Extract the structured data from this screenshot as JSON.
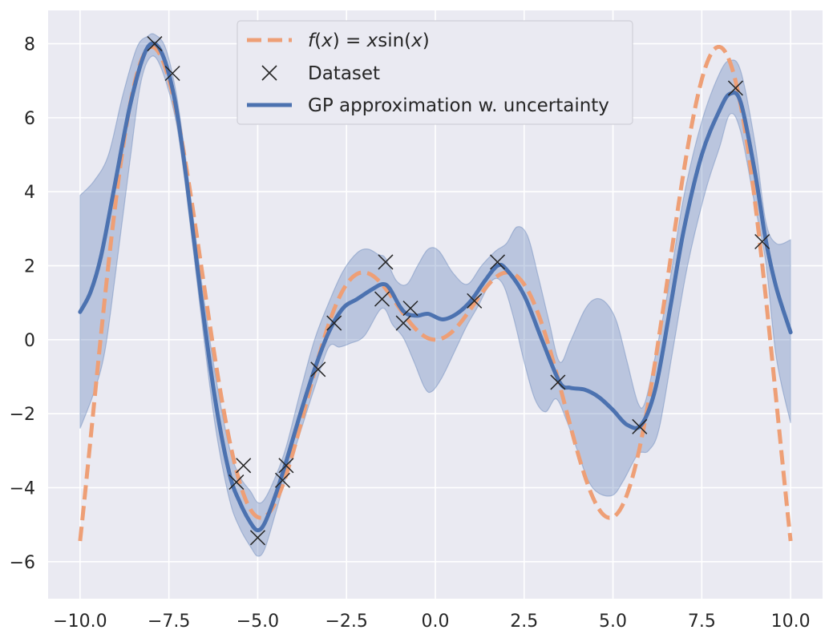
{
  "chart_data": {
    "type": "line",
    "xlim": [
      -10.9,
      10.9
    ],
    "ylim": [
      -7.0,
      8.9
    ],
    "grid": true,
    "legend_position": "top-center",
    "xticks": [
      -10.0,
      -7.5,
      -5.0,
      -2.5,
      0.0,
      2.5,
      5.0,
      7.5,
      10.0
    ],
    "xtick_labels": [
      "-10.0",
      "-7.5",
      "-5.0",
      "-2.5",
      "0.0",
      "2.5",
      "5.0",
      "7.5",
      "10.0"
    ],
    "yticks": [
      -6,
      -4,
      -2,
      0,
      2,
      4,
      6,
      8
    ],
    "ytick_labels": [
      "-6",
      "-4",
      "-2",
      "0",
      "2",
      "4",
      "6",
      "8"
    ],
    "legend": [
      {
        "kind": "true-function",
        "label_prefix": "f(x) = x",
        "label_fn": "sin",
        "label_arg": "(x)"
      },
      {
        "kind": "dataset",
        "label": "Dataset"
      },
      {
        "kind": "gp",
        "label": "GP approximation w. uncertainty"
      }
    ],
    "colors": {
      "background": "#eaeaf2",
      "grid": "#ffffff",
      "true_function": "#ee9f76",
      "gp_mean": "#4c72b0",
      "gp_band": "#4c72b0",
      "marker": "#262626"
    },
    "true_function": {
      "name": "f(x) = x sin(x)",
      "x_range": [
        -10,
        10
      ]
    },
    "dataset": [
      [
        -7.9,
        8.0
      ],
      [
        -7.4,
        7.2
      ],
      [
        -5.6,
        -3.85
      ],
      [
        -5.4,
        -3.4
      ],
      [
        -5.0,
        -5.35
      ],
      [
        -4.3,
        -3.8
      ],
      [
        -4.2,
        -3.4
      ],
      [
        -3.3,
        -0.8
      ],
      [
        -2.85,
        0.45
      ],
      [
        -1.5,
        1.1
      ],
      [
        -1.4,
        2.1
      ],
      [
        -0.9,
        0.45
      ],
      [
        -0.7,
        0.85
      ],
      [
        1.1,
        1.05
      ],
      [
        1.75,
        2.1
      ],
      [
        3.45,
        -1.15
      ],
      [
        5.75,
        -2.35
      ],
      [
        8.45,
        6.8
      ],
      [
        9.2,
        2.65
      ]
    ],
    "gp_mean": [
      [
        -10.0,
        0.75
      ],
      [
        -9.7,
        1.3
      ],
      [
        -9.4,
        2.3
      ],
      [
        -9.0,
        4.3
      ],
      [
        -8.6,
        6.3
      ],
      [
        -8.2,
        7.7
      ],
      [
        -7.9,
        8.0
      ],
      [
        -7.6,
        7.5
      ],
      [
        -7.3,
        6.3
      ],
      [
        -7.0,
        4.3
      ],
      [
        -6.6,
        1.2
      ],
      [
        -6.2,
        -1.6
      ],
      [
        -5.8,
        -3.6
      ],
      [
        -5.5,
        -4.4
      ],
      [
        -5.2,
        -4.95
      ],
      [
        -5.0,
        -5.15
      ],
      [
        -4.8,
        -4.95
      ],
      [
        -4.5,
        -4.2
      ],
      [
        -4.2,
        -3.3
      ],
      [
        -3.8,
        -2.0
      ],
      [
        -3.4,
        -0.8
      ],
      [
        -3.0,
        0.2
      ],
      [
        -2.6,
        0.85
      ],
      [
        -2.2,
        1.1
      ],
      [
        -1.8,
        1.35
      ],
      [
        -1.5,
        1.5
      ],
      [
        -1.3,
        1.4
      ],
      [
        -1.0,
        0.9
      ],
      [
        -0.8,
        0.7
      ],
      [
        -0.5,
        0.65
      ],
      [
        -0.2,
        0.7
      ],
      [
        0.2,
        0.55
      ],
      [
        0.6,
        0.7
      ],
      [
        1.0,
        1.05
      ],
      [
        1.4,
        1.6
      ],
      [
        1.75,
        2.0
      ],
      [
        2.0,
        1.9
      ],
      [
        2.5,
        1.2
      ],
      [
        3.0,
        0.0
      ],
      [
        3.5,
        -1.15
      ],
      [
        3.8,
        -1.3
      ],
      [
        4.2,
        -1.35
      ],
      [
        4.6,
        -1.55
      ],
      [
        5.0,
        -1.9
      ],
      [
        5.4,
        -2.3
      ],
      [
        5.8,
        -2.3
      ],
      [
        6.2,
        -1.3
      ],
      [
        6.6,
        0.8
      ],
      [
        7.0,
        3.0
      ],
      [
        7.5,
        5.0
      ],
      [
        8.0,
        6.2
      ],
      [
        8.3,
        6.65
      ],
      [
        8.6,
        6.4
      ],
      [
        9.0,
        4.5
      ],
      [
        9.3,
        2.7
      ],
      [
        9.6,
        1.4
      ],
      [
        10.0,
        0.2
      ]
    ],
    "gp_upper": [
      [
        -10.0,
        3.9
      ],
      [
        -9.6,
        4.3
      ],
      [
        -9.2,
        5.0
      ],
      [
        -8.8,
        6.6
      ],
      [
        -8.4,
        7.9
      ],
      [
        -8.1,
        8.2
      ],
      [
        -7.9,
        8.25
      ],
      [
        -7.6,
        7.9
      ],
      [
        -7.3,
        6.7
      ],
      [
        -7.0,
        4.7
      ],
      [
        -6.6,
        1.7
      ],
      [
        -6.2,
        -0.9
      ],
      [
        -5.8,
        -2.9
      ],
      [
        -5.5,
        -3.7
      ],
      [
        -5.2,
        -4.1
      ],
      [
        -5.0,
        -4.4
      ],
      [
        -4.8,
        -4.3
      ],
      [
        -4.5,
        -3.7
      ],
      [
        -4.2,
        -2.9
      ],
      [
        -3.8,
        -1.4
      ],
      [
        -3.4,
        0.0
      ],
      [
        -3.0,
        1.0
      ],
      [
        -2.6,
        1.85
      ],
      [
        -2.2,
        2.35
      ],
      [
        -1.9,
        2.45
      ],
      [
        -1.6,
        2.3
      ],
      [
        -1.4,
        2.2
      ],
      [
        -1.1,
        1.6
      ],
      [
        -0.8,
        1.5
      ],
      [
        -0.5,
        2.0
      ],
      [
        -0.2,
        2.45
      ],
      [
        0.1,
        2.4
      ],
      [
        0.5,
        1.8
      ],
      [
        0.9,
        1.5
      ],
      [
        1.3,
        2.0
      ],
      [
        1.7,
        2.4
      ],
      [
        2.0,
        2.6
      ],
      [
        2.3,
        3.05
      ],
      [
        2.6,
        2.8
      ],
      [
        2.9,
        1.7
      ],
      [
        3.2,
        0.5
      ],
      [
        3.5,
        -0.6
      ],
      [
        3.8,
        -0.05
      ],
      [
        4.2,
        0.8
      ],
      [
        4.5,
        1.1
      ],
      [
        4.8,
        1.0
      ],
      [
        5.1,
        0.5
      ],
      [
        5.4,
        -0.6
      ],
      [
        5.7,
        -1.7
      ],
      [
        5.9,
        -1.7
      ],
      [
        6.2,
        -0.4
      ],
      [
        6.6,
        1.6
      ],
      [
        7.0,
        3.9
      ],
      [
        7.5,
        5.9
      ],
      [
        8.0,
        7.2
      ],
      [
        8.3,
        7.55
      ],
      [
        8.6,
        7.25
      ],
      [
        9.0,
        5.3
      ],
      [
        9.3,
        3.2
      ],
      [
        9.6,
        2.6
      ],
      [
        10.0,
        2.7
      ]
    ],
    "gp_lower": [
      [
        -10.0,
        -2.4
      ],
      [
        -9.6,
        -1.4
      ],
      [
        -9.3,
        -0.3
      ],
      [
        -9.0,
        1.8
      ],
      [
        -8.6,
        4.8
      ],
      [
        -8.3,
        6.9
      ],
      [
        -8.0,
        7.65
      ],
      [
        -7.7,
        7.3
      ],
      [
        -7.3,
        5.9
      ],
      [
        -7.0,
        3.9
      ],
      [
        -6.6,
        0.7
      ],
      [
        -6.2,
        -2.3
      ],
      [
        -5.8,
        -4.3
      ],
      [
        -5.5,
        -5.1
      ],
      [
        -5.2,
        -5.6
      ],
      [
        -5.0,
        -5.85
      ],
      [
        -4.8,
        -5.65
      ],
      [
        -4.5,
        -4.7
      ],
      [
        -4.2,
        -3.7
      ],
      [
        -3.8,
        -2.5
      ],
      [
        -3.4,
        -1.3
      ],
      [
        -3.0,
        -0.2
      ],
      [
        -2.7,
        -0.2
      ],
      [
        -2.4,
        -0.1
      ],
      [
        -2.0,
        0.1
      ],
      [
        -1.5,
        0.85
      ],
      [
        -1.2,
        0.4
      ],
      [
        -0.9,
        0.05
      ],
      [
        -0.6,
        -0.6
      ],
      [
        -0.3,
        -1.3
      ],
      [
        -0.1,
        -1.4
      ],
      [
        0.2,
        -1.0
      ],
      [
        0.6,
        -0.2
      ],
      [
        0.9,
        0.4
      ],
      [
        1.2,
        0.9
      ],
      [
        1.6,
        1.6
      ],
      [
        1.9,
        1.5
      ],
      [
        2.2,
        0.6
      ],
      [
        2.5,
        -0.6
      ],
      [
        2.8,
        -1.6
      ],
      [
        3.1,
        -1.95
      ],
      [
        3.4,
        -1.6
      ],
      [
        3.7,
        -2.2
      ],
      [
        4.0,
        -3.0
      ],
      [
        4.3,
        -3.8
      ],
      [
        4.6,
        -4.15
      ],
      [
        5.0,
        -4.2
      ],
      [
        5.3,
        -3.8
      ],
      [
        5.7,
        -3.1
      ],
      [
        6.0,
        -3.0
      ],
      [
        6.3,
        -2.4
      ],
      [
        6.7,
        -0.2
      ],
      [
        7.1,
        2.0
      ],
      [
        7.6,
        4.0
      ],
      [
        8.0,
        5.2
      ],
      [
        8.3,
        6.1
      ],
      [
        8.6,
        5.6
      ],
      [
        9.0,
        3.6
      ],
      [
        9.3,
        2.1
      ],
      [
        9.6,
        -0.5
      ],
      [
        10.0,
        -2.25
      ]
    ]
  }
}
